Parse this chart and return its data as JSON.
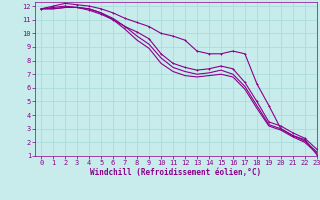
{
  "background_color": "#c8ecec",
  "grid_color": "#aadddd",
  "line_color": "#8b008b",
  "xlabel": "Windchill (Refroidissement éolien,°C)",
  "xlim": [
    -0.5,
    23
  ],
  "ylim": [
    1,
    12.3
  ],
  "xticks": [
    0,
    1,
    2,
    3,
    4,
    5,
    6,
    7,
    8,
    9,
    10,
    11,
    12,
    13,
    14,
    15,
    16,
    17,
    18,
    19,
    20,
    21,
    22,
    23
  ],
  "yticks": [
    1,
    2,
    3,
    4,
    5,
    6,
    7,
    8,
    9,
    10,
    11,
    12
  ],
  "series1_x": [
    0,
    1,
    2,
    3,
    4,
    5,
    6,
    7,
    8,
    9,
    10,
    11,
    12,
    13,
    14,
    15,
    16,
    17,
    18,
    19,
    20,
    21,
    22,
    23
  ],
  "series1_y": [
    11.8,
    12.0,
    12.2,
    12.1,
    12.0,
    11.8,
    11.5,
    11.1,
    10.8,
    10.5,
    10.0,
    9.8,
    9.5,
    8.7,
    8.5,
    8.5,
    8.7,
    8.5,
    6.3,
    4.7,
    3.0,
    2.5,
    2.2,
    1.1
  ],
  "series2_x": [
    0,
    1,
    2,
    3,
    4,
    5,
    6,
    7,
    8,
    9,
    10,
    11,
    12,
    13,
    14,
    15,
    16,
    17,
    18,
    19,
    20,
    21,
    22,
    23
  ],
  "series2_y": [
    11.8,
    11.9,
    12.0,
    11.9,
    11.7,
    11.4,
    11.0,
    10.5,
    10.1,
    9.6,
    8.5,
    7.8,
    7.5,
    7.3,
    7.4,
    7.6,
    7.4,
    6.4,
    5.0,
    3.5,
    3.2,
    2.7,
    2.3,
    1.5
  ],
  "series3_x": [
    0,
    1,
    2,
    3,
    4,
    5,
    6,
    7,
    8,
    9,
    10,
    11,
    12,
    13,
    14,
    15,
    16,
    17,
    18,
    19,
    20,
    21,
    22,
    23
  ],
  "series3_y": [
    11.8,
    11.8,
    11.9,
    11.9,
    11.8,
    11.5,
    11.1,
    10.5,
    9.8,
    9.2,
    8.2,
    7.5,
    7.2,
    7.0,
    7.1,
    7.3,
    7.0,
    6.1,
    4.7,
    3.3,
    3.0,
    2.5,
    2.1,
    1.3
  ],
  "series4_x": [
    0,
    1,
    2,
    3,
    4,
    5,
    6,
    7,
    8,
    9,
    10,
    11,
    12,
    13,
    14,
    15,
    16,
    17,
    18,
    19,
    20,
    21,
    22,
    23
  ],
  "series4_y": [
    11.8,
    11.8,
    11.9,
    11.9,
    11.8,
    11.5,
    11.0,
    10.3,
    9.5,
    8.9,
    7.8,
    7.2,
    6.9,
    6.8,
    6.9,
    7.0,
    6.8,
    5.9,
    4.5,
    3.2,
    2.9,
    2.4,
    2.0,
    1.2
  ],
  "tick_fontsize": 5,
  "label_fontsize": 5.5,
  "linewidth": 0.8,
  "marker_size": 2.0
}
